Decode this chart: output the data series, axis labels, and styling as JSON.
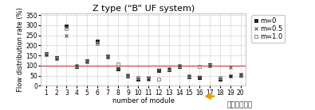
{
  "title": "Z type (“B” UF system)",
  "xlabel": "number of module",
  "ylabel": "Flow distribution rate (%)",
  "hline_y": 100,
  "hline_color": "#d9534f",
  "xlim": [
    0.5,
    20.5
  ],
  "ylim": [
    0,
    360
  ],
  "yticks": [
    0,
    50,
    100,
    150,
    200,
    250,
    300,
    350
  ],
  "xticks": [
    1,
    2,
    3,
    4,
    5,
    6,
    7,
    8,
    9,
    10,
    11,
    12,
    13,
    14,
    15,
    16,
    17,
    18,
    19,
    20
  ],
  "background": "#ffffff",
  "series_m0": [
    160,
    140,
    295,
    97,
    123,
    220,
    148,
    85,
    48,
    35,
    38,
    78,
    80,
    97,
    45,
    42,
    105,
    35,
    47,
    52
  ],
  "series_m05": [
    158,
    138,
    248,
    98,
    121,
    213,
    145,
    88,
    50,
    37,
    40,
    80,
    82,
    98,
    47,
    44,
    100,
    38,
    92,
    55
  ],
  "series_m10": [
    155,
    135,
    285,
    100,
    120,
    210,
    142,
    108,
    52,
    39,
    35,
    33,
    83,
    100,
    49,
    97,
    98,
    40,
    48,
    57
  ],
  "arrow_color": "#e8a000",
  "annotation_text": "원수유입방향",
  "annotation_fontsize": 6.5,
  "title_fontsize": 8,
  "label_fontsize": 6,
  "tick_fontsize": 5.5,
  "legend_fontsize": 6
}
